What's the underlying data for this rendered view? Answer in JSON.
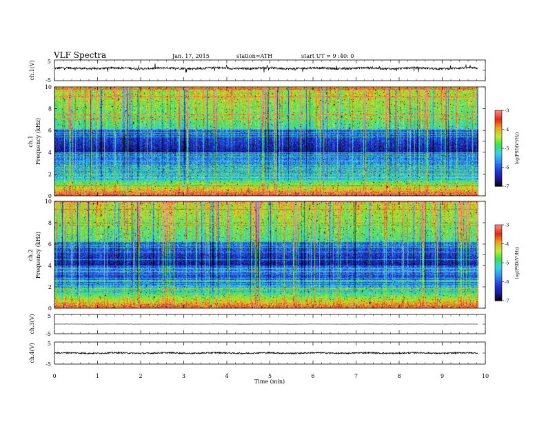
{
  "header": {
    "title": "VLF  Spectra",
    "date": "Jan. 17, 2015",
    "station": "station=ATH",
    "start_time": "start  UT  =   9 :40: 0"
  },
  "chart_data": {
    "type": "heatmap",
    "x_axis": {
      "label": "Time  (min)",
      "range": [
        0,
        10
      ],
      "ticks": [
        0,
        1,
        2,
        3,
        4,
        5,
        6,
        7,
        8,
        9,
        10
      ],
      "tick_labels": [
        "0",
        "1",
        "2",
        "3",
        "4",
        "5",
        "6",
        "7",
        "8",
        "9",
        "10"
      ],
      "data_end": 9.83
    },
    "panels": [
      {
        "id": "ch1-waveform",
        "type": "line",
        "ylabel": "ch.1(V)",
        "ylim": [
          -5,
          5
        ],
        "yticks": [
          -5,
          5
        ],
        "ytick_labels": [
          "-5",
          "5"
        ],
        "mean_level": 1.0,
        "noise_amplitude": 0.5
      },
      {
        "id": "ch1-spectrogram",
        "type": "heatmap",
        "ylabel_channel": "ch.1",
        "ylabel": "Frequency  (kHz)",
        "ylim": [
          0,
          10
        ],
        "yticks": [
          0,
          2,
          4,
          6,
          8,
          10
        ],
        "ytick_labels": [
          "0",
          "2",
          "4",
          "6",
          "8",
          "10"
        ],
        "colorbar": {
          "label": "log(PSD(V²/Hz)",
          "range": [
            -7,
            -3
          ],
          "ticks": [
            "-3",
            "-4",
            "-5",
            "-6",
            "-7"
          ]
        }
      },
      {
        "id": "ch2-spectrogram",
        "type": "heatmap",
        "ylabel_channel": "ch.2",
        "ylabel": "Frequency  (kHz)",
        "ylim": [
          0,
          10
        ],
        "yticks": [
          0,
          2,
          4,
          6,
          8,
          10
        ],
        "ytick_labels": [
          "0",
          "2",
          "4",
          "6",
          "8",
          "10"
        ],
        "colorbar": {
          "label": "log(PSD(V²/Hz)",
          "range": [
            -7,
            -3
          ],
          "ticks": [
            "-3",
            "-4",
            "-5",
            "-6",
            "-7"
          ]
        }
      },
      {
        "id": "ch3-waveform",
        "type": "line",
        "ylabel": "ch.3(V)",
        "ylim": [
          -5,
          5
        ],
        "yticks": [
          -5,
          5
        ],
        "ytick_labels": [
          "-5",
          "5"
        ],
        "mean_level": 0.0,
        "noise_amplitude": 0.05
      },
      {
        "id": "ch4-waveform",
        "type": "line",
        "ylabel": "ch.4(V)",
        "ylim": [
          -5,
          5
        ],
        "yticks": [
          -5,
          5
        ],
        "ytick_labels": [
          "-5",
          "5"
        ],
        "mean_level": 0.0,
        "noise_amplitude": 0.3
      }
    ],
    "colormap": [
      "#000000",
      "#1a1aa0",
      "#1f3fd6",
      "#2f8ff0",
      "#33d6e6",
      "#3fe04a",
      "#c8e830",
      "#f0a020",
      "#e02a1a",
      "#f08a8a"
    ]
  }
}
